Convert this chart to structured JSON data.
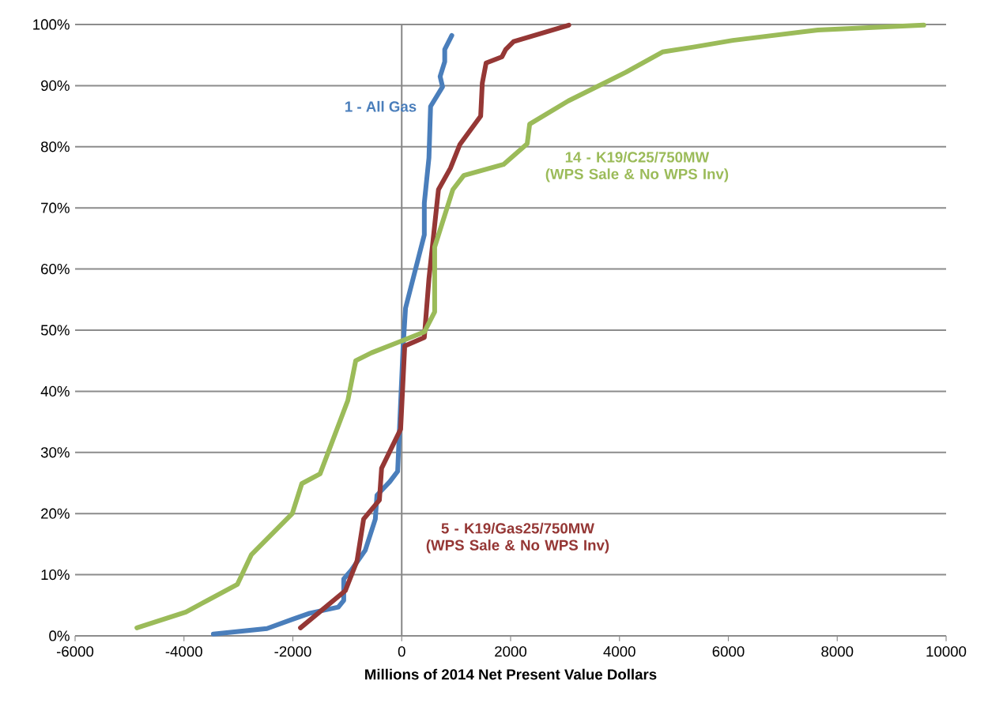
{
  "chart_data": {
    "type": "line",
    "xlabel": "Millions of 2014 Net Present Value Dollars",
    "xlim": [
      -6000,
      10000
    ],
    "xticks": [
      -6000,
      -4000,
      -2000,
      0,
      2000,
      4000,
      6000,
      8000,
      10000
    ],
    "ylim": [
      0,
      100
    ],
    "yticks": [
      {
        "value": 0,
        "label": "0%"
      },
      {
        "value": 10,
        "label": "10%"
      },
      {
        "value": 20,
        "label": "20%"
      },
      {
        "value": 30,
        "label": "30%"
      },
      {
        "value": 40,
        "label": "40%"
      },
      {
        "value": 50,
        "label": "50%"
      },
      {
        "value": 60,
        "label": "60%"
      },
      {
        "value": 70,
        "label": "70%"
      },
      {
        "value": 80,
        "label": "80%"
      },
      {
        "value": 90,
        "label": "90%"
      },
      {
        "value": 100,
        "label": "100%"
      }
    ],
    "grid": "y",
    "legend": false,
    "marker": "none",
    "line_style": "solid",
    "ref_lines": [
      {
        "axis": "x",
        "value": 0,
        "color": "#868686"
      }
    ],
    "series": [
      {
        "name": "1 - All Gas",
        "color": "#4a7ebb",
        "x": [
          -3460,
          -2475,
          -2010,
          -1690,
          -1165,
          -1065,
          -1065,
          -930,
          -670,
          -485,
          -455,
          -220,
          -75,
          -50,
          25,
          70,
          415,
          415,
          500,
          530,
          750,
          705,
          790,
          790,
          920
        ],
        "values": [
          0.3,
          1.2,
          2.7,
          3.7,
          4.7,
          5.8,
          9.3,
          10.7,
          14,
          19.1,
          23,
          25.2,
          26.9,
          32,
          47.2,
          53.6,
          65.6,
          70.8,
          78.2,
          86.6,
          89.8,
          91.5,
          93.9,
          95.9,
          98.2
        ]
      },
      {
        "name": "5 - K19/Gas25/750MW (WPS Sale & No WPS Inv)",
        "color": "#953735",
        "x": [
          -1860,
          -1035,
          -820,
          -700,
          -410,
          -370,
          -20,
          55,
          415,
          500,
          675,
          895,
          1070,
          1450,
          1480,
          1550,
          1840,
          1910,
          2055,
          3070
        ],
        "values": [
          1.3,
          7.4,
          12.3,
          19.1,
          22.2,
          27.4,
          33.8,
          47.4,
          48.8,
          58.4,
          73,
          76.5,
          80.4,
          85,
          90.4,
          93.7,
          94.7,
          95.9,
          97.2,
          99.9
        ]
      },
      {
        "name": "14 - K19/C25/750MW (WPS Sale & No WPS Inv)",
        "color": "#9bbb59",
        "x": [
          -4865,
          -3965,
          -3020,
          -2760,
          -2010,
          -1835,
          -1500,
          -990,
          -845,
          -555,
          415,
          605,
          605,
          940,
          1140,
          1870,
          2305,
          2350,
          3060,
          4120,
          4790,
          5355,
          6080,
          7645,
          9590
        ],
        "values": [
          1.3,
          3.9,
          8.4,
          13.3,
          20,
          24.9,
          26.5,
          38.5,
          45,
          46.3,
          49.7,
          53,
          63.6,
          73,
          75.3,
          77.1,
          80.5,
          83.7,
          87.5,
          92.2,
          95.5,
          96.3,
          97.4,
          99.1,
          99.9
        ]
      }
    ]
  }
}
